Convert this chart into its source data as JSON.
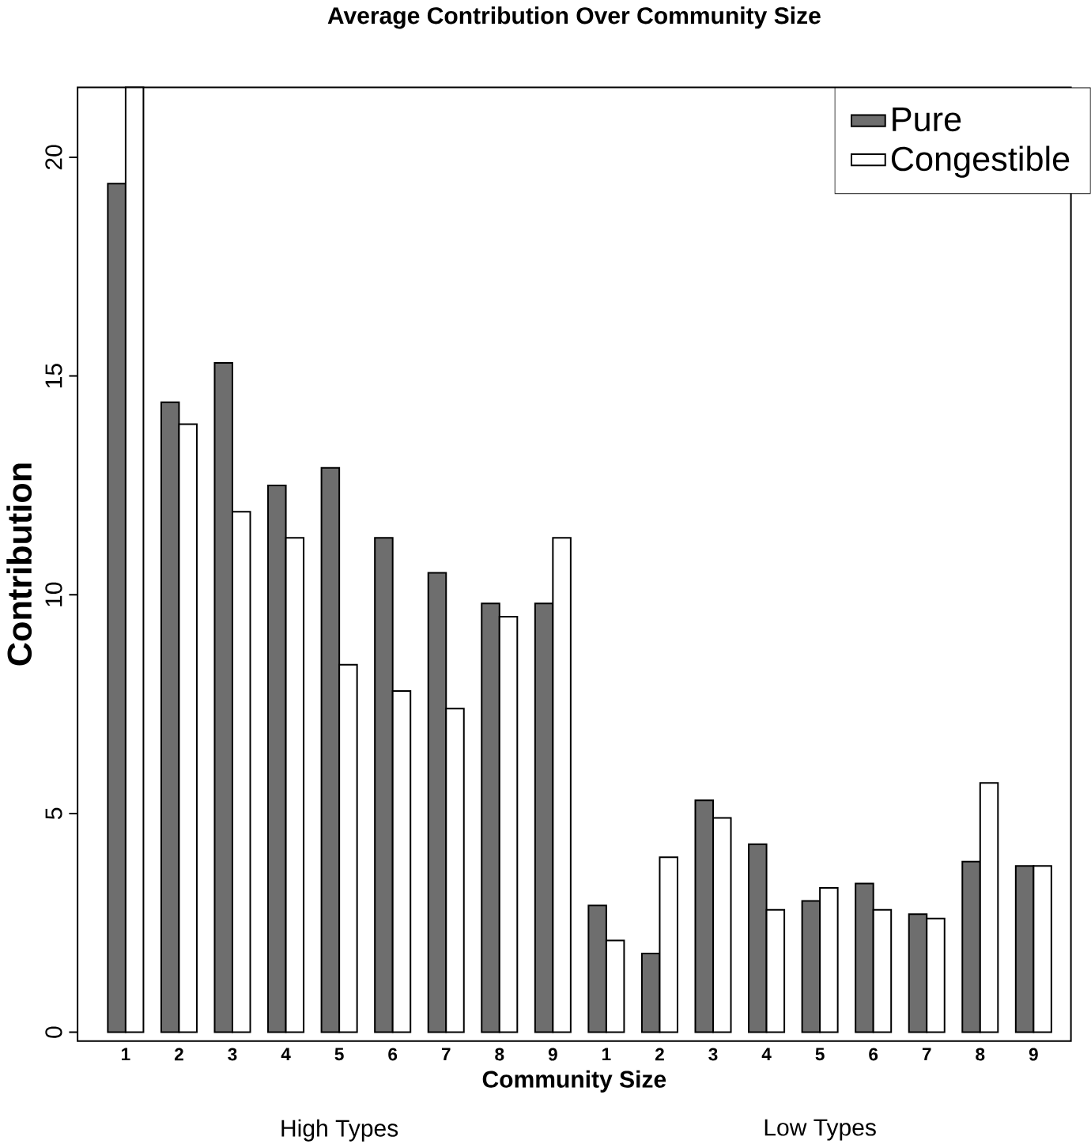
{
  "chart_data": {
    "type": "bar",
    "title": "Average Contribution Over Community Size",
    "xlabel": "Community Size",
    "ylabel": "Contribution",
    "categories": [
      "1",
      "2",
      "3",
      "4",
      "5",
      "6",
      "7",
      "8",
      "9",
      "1",
      "2",
      "3",
      "4",
      "5",
      "6",
      "7",
      "8",
      "9"
    ],
    "series": [
      {
        "name": "Pure",
        "color": "#6e6e6e",
        "values": [
          19.4,
          14.4,
          15.3,
          12.5,
          12.9,
          11.3,
          10.5,
          9.8,
          9.8,
          2.9,
          1.8,
          5.3,
          4.3,
          3.0,
          3.4,
          2.7,
          3.9,
          3.8
        ]
      },
      {
        "name": "Congestible",
        "color": "#ffffff",
        "values": [
          21.6,
          13.9,
          11.9,
          11.3,
          8.4,
          7.8,
          7.4,
          9.5,
          11.3,
          2.1,
          4.0,
          4.9,
          2.8,
          3.3,
          2.8,
          2.6,
          5.7,
          3.8
        ]
      }
    ],
    "ylim": [
      -0.2,
      21.6
    ],
    "yticks": [
      0,
      5,
      10,
      15,
      20
    ],
    "legend": "top right",
    "annotations": [
      "High Types",
      "Low Types"
    ]
  }
}
